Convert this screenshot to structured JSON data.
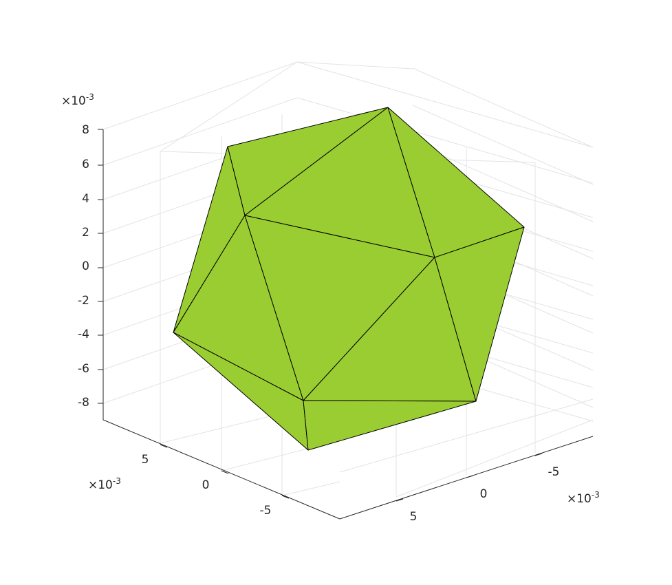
{
  "chart_data": {
    "type": "3d-surface",
    "title": "",
    "xlabel": "",
    "ylabel": "",
    "zlabel": "",
    "grid": true,
    "x_axis": {
      "ticks": [
        -5,
        0,
        5
      ],
      "exponent_label": "×10",
      "exponent": "-3"
    },
    "y_axis": {
      "ticks": [
        5,
        0,
        -5
      ],
      "exponent_label": "×10",
      "exponent": "-3"
    },
    "z_axis": {
      "ticks": [
        8,
        6,
        4,
        2,
        0,
        -2,
        -4,
        -6,
        -8
      ],
      "exponent_label": "×10",
      "exponent": "-3"
    },
    "surface": {
      "shape": "icosahedron",
      "face_color": "#9ACD32",
      "edge_color": "#000000",
      "vertices_visible": 12
    }
  }
}
